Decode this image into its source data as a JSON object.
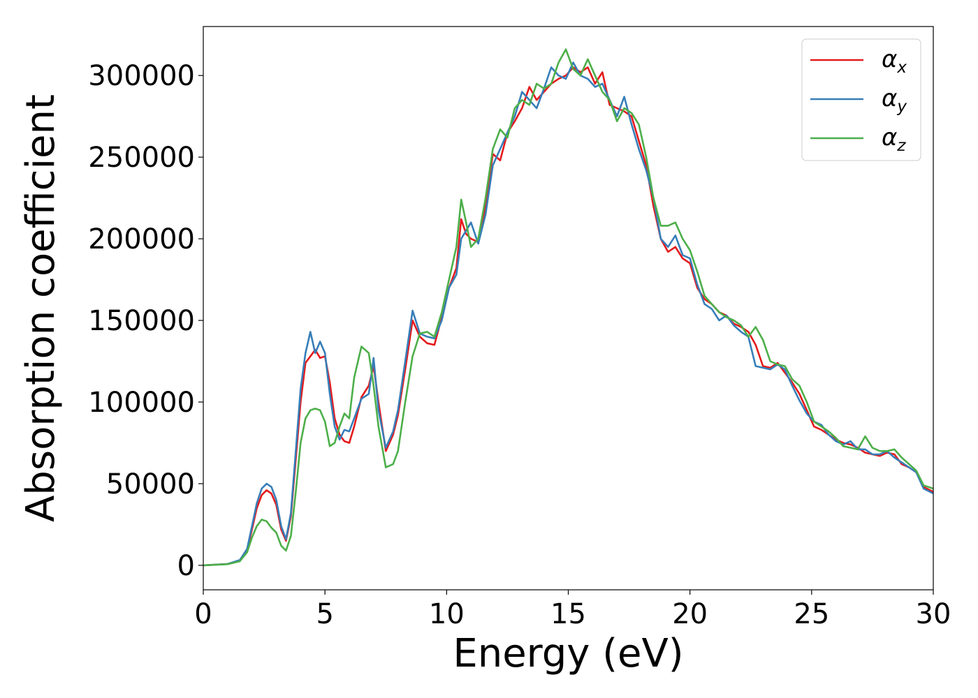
{
  "chart_data": {
    "type": "line",
    "xlabel": "Energy (eV)",
    "ylabel": "Absorption coefficient",
    "xlim": [
      0,
      30
    ],
    "ylim": [
      -15000,
      330000
    ],
    "xticks": [
      0,
      5,
      10,
      15,
      20,
      25,
      30
    ],
    "xtick_labels": [
      "0",
      "5",
      "10",
      "15",
      "20",
      "25",
      "30"
    ],
    "yticks": [
      0,
      50000,
      100000,
      150000,
      200000,
      250000,
      300000
    ],
    "ytick_labels": [
      "0",
      "50000",
      "100000",
      "150000",
      "200000",
      "250000",
      "300000"
    ],
    "grid": false,
    "legend_position": "top-right",
    "series": [
      {
        "name": "αx",
        "legend_base": "α",
        "legend_sub": "x",
        "color": "#e41a1c",
        "x": [
          0,
          1,
          1.5,
          1.8,
          2.0,
          2.2,
          2.4,
          2.6,
          2.8,
          3.0,
          3.2,
          3.4,
          3.6,
          3.8,
          4.0,
          4.2,
          4.4,
          4.6,
          4.8,
          5.0,
          5.2,
          5.4,
          5.6,
          5.8,
          6.0,
          6.2,
          6.5,
          6.8,
          7.0,
          7.2,
          7.5,
          7.8,
          8.0,
          8.3,
          8.6,
          8.9,
          9.2,
          9.5,
          9.8,
          10.1,
          10.4,
          10.6,
          10.8,
          11.0,
          11.3,
          11.6,
          11.9,
          12.2,
          12.5,
          12.8,
          13.1,
          13.4,
          13.7,
          14.0,
          14.3,
          14.6,
          14.9,
          15.2,
          15.5,
          15.8,
          16.1,
          16.4,
          16.7,
          17.0,
          17.3,
          17.6,
          17.9,
          18.2,
          18.5,
          18.8,
          19.1,
          19.4,
          19.7,
          20.0,
          20.3,
          20.6,
          20.9,
          21.2,
          21.5,
          21.8,
          22.1,
          22.4,
          22.7,
          23.0,
          23.3,
          23.6,
          23.9,
          24.2,
          24.5,
          24.8,
          25.1,
          25.4,
          25.7,
          26.0,
          26.3,
          26.6,
          26.9,
          27.2,
          27.5,
          27.8,
          28.1,
          28.4,
          28.7,
          29.0,
          29.3,
          29.6,
          30
        ],
        "y": [
          0,
          800,
          3000,
          9000,
          22000,
          35000,
          43000,
          46000,
          44000,
          37000,
          22000,
          15000,
          30000,
          65000,
          100000,
          124000,
          128000,
          132000,
          127000,
          128000,
          112000,
          90000,
          80000,
          76000,
          75000,
          85000,
          103000,
          110000,
          122000,
          100000,
          70000,
          80000,
          92000,
          120000,
          150000,
          140000,
          136000,
          135000,
          152000,
          170000,
          182000,
          212000,
          203000,
          200000,
          198000,
          220000,
          252000,
          248000,
          265000,
          272000,
          280000,
          293000,
          285000,
          290000,
          295000,
          298000,
          300000,
          305000,
          302000,
          305000,
          295000,
          302000,
          282000,
          280000,
          278000,
          275000,
          260000,
          245000,
          220000,
          200000,
          192000,
          195000,
          188000,
          185000,
          170000,
          163000,
          160000,
          155000,
          153000,
          148000,
          146000,
          143000,
          135000,
          122000,
          121000,
          124000,
          118000,
          112000,
          105000,
          95000,
          85000,
          83000,
          80000,
          77000,
          75000,
          74000,
          72000,
          69000,
          68000,
          67000,
          69000,
          68000,
          62000,
          60000,
          57000,
          48000,
          45000
        ]
      },
      {
        "name": "αy",
        "legend_base": "α",
        "legend_sub": "y",
        "color": "#377eb8",
        "x": [
          0,
          1,
          1.5,
          1.8,
          2.0,
          2.2,
          2.4,
          2.6,
          2.8,
          3.0,
          3.2,
          3.4,
          3.6,
          3.8,
          4.0,
          4.2,
          4.4,
          4.6,
          4.8,
          5.0,
          5.2,
          5.4,
          5.6,
          5.8,
          6.0,
          6.2,
          6.5,
          6.8,
          7.0,
          7.2,
          7.5,
          7.8,
          8.0,
          8.3,
          8.6,
          8.9,
          9.2,
          9.5,
          9.8,
          10.1,
          10.4,
          10.6,
          10.8,
          11.0,
          11.3,
          11.6,
          11.9,
          12.2,
          12.5,
          12.8,
          13.1,
          13.4,
          13.7,
          14.0,
          14.3,
          14.6,
          14.9,
          15.2,
          15.5,
          15.8,
          16.1,
          16.4,
          16.7,
          17.0,
          17.3,
          17.6,
          17.9,
          18.2,
          18.5,
          18.8,
          19.1,
          19.4,
          19.7,
          20.0,
          20.3,
          20.6,
          20.9,
          21.2,
          21.5,
          21.8,
          22.1,
          22.4,
          22.7,
          23.0,
          23.3,
          23.6,
          23.9,
          24.2,
          24.5,
          24.8,
          25.1,
          25.4,
          25.7,
          26.0,
          26.3,
          26.6,
          26.9,
          27.2,
          27.5,
          27.8,
          28.1,
          28.4,
          28.7,
          29.0,
          29.3,
          29.6,
          30
        ],
        "y": [
          0,
          800,
          3200,
          10000,
          24000,
          38000,
          47000,
          50000,
          48000,
          40000,
          24000,
          16000,
          32000,
          70000,
          108000,
          130000,
          143000,
          130000,
          137000,
          130000,
          105000,
          85000,
          77000,
          83000,
          82000,
          90000,
          102000,
          105000,
          127000,
          95000,
          72000,
          82000,
          95000,
          125000,
          156000,
          142000,
          140000,
          139000,
          150000,
          170000,
          178000,
          200000,
          205000,
          210000,
          197000,
          215000,
          245000,
          255000,
          265000,
          275000,
          290000,
          285000,
          280000,
          292000,
          305000,
          300000,
          298000,
          308000,
          300000,
          298000,
          293000,
          295000,
          285000,
          275000,
          287000,
          270000,
          255000,
          242000,
          225000,
          200000,
          195000,
          202000,
          190000,
          188000,
          172000,
          160000,
          157000,
          150000,
          153000,
          147000,
          143000,
          140000,
          122000,
          121000,
          120000,
          123000,
          120000,
          110000,
          101000,
          93000,
          88000,
          86000,
          80000,
          76000,
          74000,
          76000,
          71000,
          71000,
          68000,
          68000,
          70000,
          66000,
          63000,
          60000,
          57000,
          47000,
          44000
        ]
      },
      {
        "name": "αz",
        "legend_base": "α",
        "legend_sub": "z",
        "color": "#4daf4a",
        "x": [
          0,
          1,
          1.5,
          1.8,
          2.0,
          2.2,
          2.4,
          2.6,
          2.8,
          3.0,
          3.2,
          3.4,
          3.6,
          3.8,
          4.0,
          4.2,
          4.4,
          4.6,
          4.8,
          5.0,
          5.2,
          5.4,
          5.6,
          5.8,
          6.0,
          6.2,
          6.5,
          6.8,
          7.0,
          7.2,
          7.5,
          7.8,
          8.0,
          8.3,
          8.6,
          8.9,
          9.2,
          9.5,
          9.8,
          10.1,
          10.4,
          10.6,
          10.8,
          11.0,
          11.3,
          11.6,
          11.9,
          12.2,
          12.5,
          12.8,
          13.1,
          13.4,
          13.7,
          14.0,
          14.3,
          14.6,
          14.9,
          15.2,
          15.5,
          15.8,
          16.1,
          16.4,
          16.7,
          17.0,
          17.3,
          17.6,
          17.9,
          18.2,
          18.5,
          18.8,
          19.1,
          19.4,
          19.7,
          20.0,
          20.3,
          20.6,
          20.9,
          21.2,
          21.5,
          21.8,
          22.1,
          22.4,
          22.7,
          23.0,
          23.3,
          23.6,
          23.9,
          24.2,
          24.5,
          24.8,
          25.1,
          25.4,
          25.7,
          26.0,
          26.3,
          26.6,
          26.9,
          27.2,
          27.5,
          27.8,
          28.1,
          28.4,
          28.7,
          29.0,
          29.3,
          29.6,
          30
        ],
        "y": [
          0,
          700,
          2500,
          8000,
          17000,
          24000,
          28000,
          27000,
          23000,
          20000,
          12000,
          9000,
          18000,
          45000,
          75000,
          90000,
          95000,
          96000,
          95000,
          88000,
          73000,
          75000,
          85000,
          93000,
          90000,
          115000,
          134000,
          130000,
          110000,
          85000,
          60000,
          62000,
          70000,
          100000,
          128000,
          142000,
          143000,
          140000,
          155000,
          175000,
          195000,
          224000,
          210000,
          195000,
          200000,
          225000,
          255000,
          267000,
          262000,
          280000,
          285000,
          282000,
          295000,
          292000,
          295000,
          308000,
          316000,
          304000,
          300000,
          310000,
          300000,
          290000,
          285000,
          272000,
          280000,
          277000,
          270000,
          250000,
          225000,
          208000,
          208000,
          210000,
          200000,
          193000,
          180000,
          165000,
          160000,
          155000,
          152000,
          150000,
          147000,
          140000,
          146000,
          138000,
          125000,
          123000,
          122000,
          114000,
          110000,
          100000,
          88000,
          85000,
          82000,
          78000,
          73000,
          72000,
          71000,
          79000,
          72000,
          70000,
          70000,
          71000,
          66000,
          62000,
          58000,
          49000,
          47000
        ]
      }
    ]
  }
}
